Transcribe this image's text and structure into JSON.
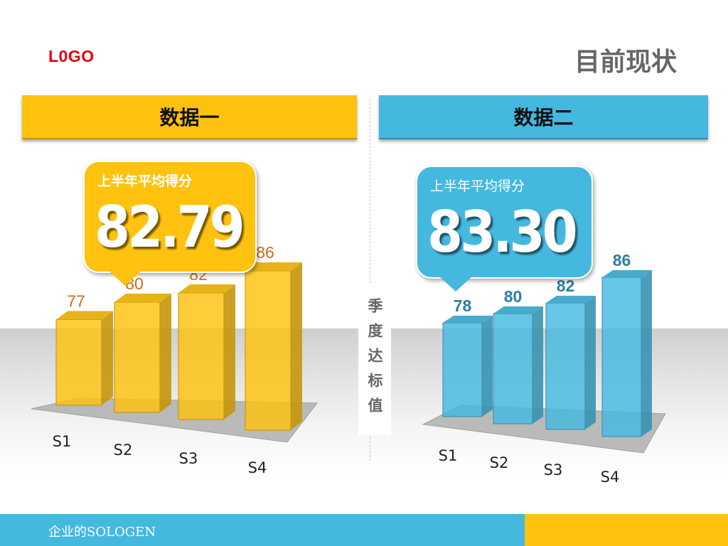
{
  "logo": "L0GO",
  "page_title": "目前现状",
  "side_label": "季度达标值",
  "footer": {
    "text": "企业的SOLOGEN"
  },
  "colors": {
    "yellow": "#ffc20e",
    "blue": "#45b8e0",
    "yellow_value_label": "#d06a1a",
    "blue_value_label": "#2e7fa0"
  },
  "panels": [
    {
      "header": "数据一",
      "callout": {
        "title": "上半年平均得分",
        "value": "82.79"
      }
    },
    {
      "header": "数据二",
      "callout": {
        "title": "上半年平均得分",
        "value": "83.30"
      }
    }
  ],
  "chart_data": [
    {
      "type": "bar",
      "categories": [
        "S1",
        "S2",
        "S3",
        "S4"
      ],
      "values": [
        77,
        80,
        82,
        86
      ],
      "title": "",
      "xlabel": "",
      "ylabel": "",
      "color": "#ffc20e"
    },
    {
      "type": "bar",
      "categories": [
        "S1",
        "S2",
        "S3",
        "S4"
      ],
      "values": [
        78,
        80,
        82,
        86
      ],
      "title": "",
      "xlabel": "",
      "ylabel": "",
      "color": "#45b8e0"
    }
  ]
}
